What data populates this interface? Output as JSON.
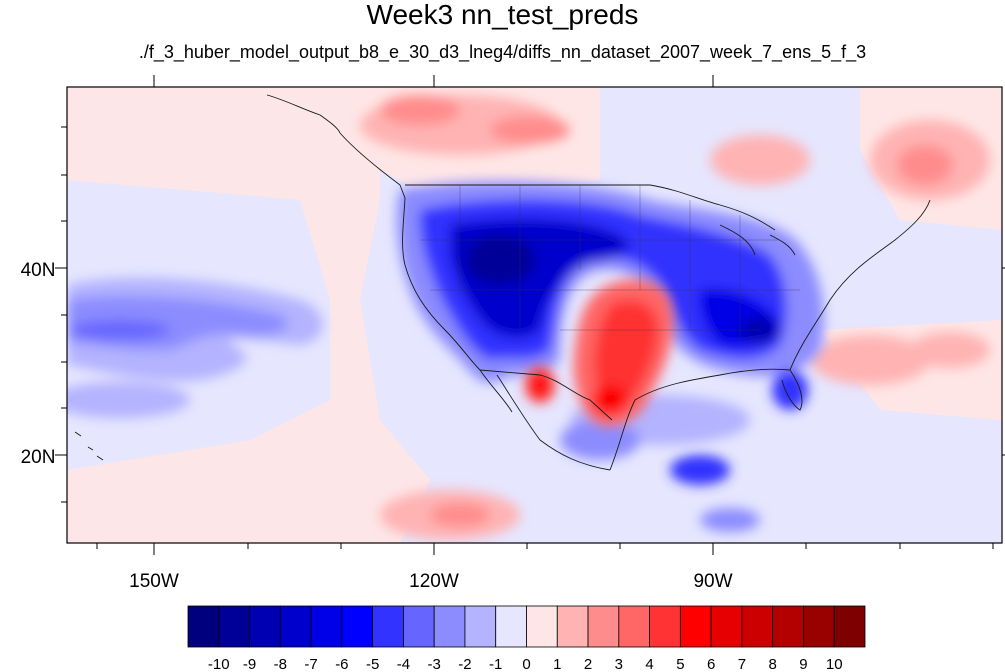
{
  "title": "Week3 nn_test_preds",
  "subtitle": "./f_3_huber_model_output_b8_e_30_d3_lneg4/diffs_nn_dataset_2007_week_7_ens_5_f_3",
  "map": {
    "lat_labels": [
      "40N",
      "20N"
    ],
    "lon_labels": [
      "150W",
      "120W",
      "90W"
    ]
  },
  "colorbar": {
    "tick_labels": [
      "-10",
      "-9",
      "-8",
      "-7",
      "-6",
      "-5",
      "-4",
      "-3",
      "-2",
      "-1",
      "0",
      "1",
      "2",
      "3",
      "4",
      "5",
      "6",
      "7",
      "8",
      "9",
      "10"
    ],
    "colors": [
      "#00007f",
      "#000099",
      "#0000b3",
      "#0000cc",
      "#0000e6",
      "#0000ff",
      "#3333ff",
      "#6666ff",
      "#8c8cff",
      "#b3b3ff",
      "#e6e6ff",
      "#ffe6e6",
      "#ffb3b3",
      "#ff8c8c",
      "#ff6666",
      "#ff3333",
      "#ff0000",
      "#e60000",
      "#cc0000",
      "#b30000",
      "#990000",
      "#7f0000"
    ]
  }
}
